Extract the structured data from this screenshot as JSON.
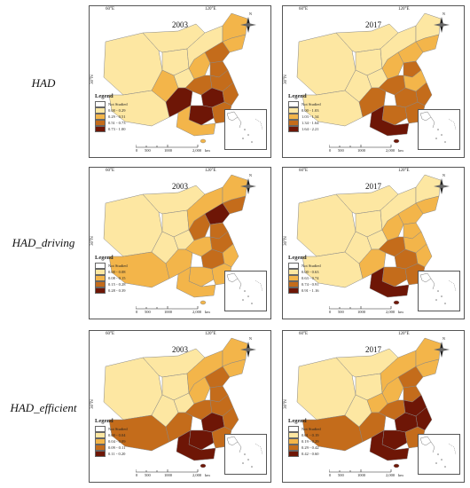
{
  "labels": {
    "lon_left": "60°E",
    "lon_right": "120°E",
    "lat": "30°N",
    "north": "N",
    "legend_title": "Legend",
    "not_studied": "Not Studied",
    "scale_0": "0",
    "scale_500": "500",
    "scale_1000": "1000",
    "scale_2000": "2,000",
    "scale_unit": "km"
  },
  "colors": {
    "c1": "#fde7a2",
    "c2": "#f3b54a",
    "c3": "#c46c1b",
    "c4": "#6e1606",
    "not_studied": "#ffffff"
  },
  "rows": [
    {
      "label": "HAD",
      "panels": [
        {
          "year": "2003",
          "classes": [
            "0.00 - 0.29",
            "0.29 - 0.51",
            "0.51 - 0.73",
            "0.73 - 1.00"
          ],
          "levels": [
            1,
            1,
            1,
            1,
            2,
            1,
            1,
            2,
            2,
            3,
            2,
            3,
            3,
            3,
            4,
            4,
            3,
            4,
            3,
            2
          ]
        },
        {
          "year": "2017",
          "classes": [
            "0.00 - 1.03",
            "1.03 - 1.34",
            "1.34 - 1.64",
            "1.64 - 2.21"
          ],
          "levels": [
            1,
            1,
            1,
            1,
            1,
            1,
            1,
            1,
            2,
            2,
            2,
            3,
            3,
            2,
            3,
            3,
            3,
            3,
            3,
            4
          ]
        }
      ]
    },
    {
      "label": "HAD_driving",
      "panels": [
        {
          "year": "2003",
          "classes": [
            "0.00 - 0.08",
            "0.08 - 0.15",
            "0.15 - 0.28",
            "0.28 - 0.39"
          ],
          "levels": [
            1,
            2,
            1,
            1,
            1,
            1,
            2,
            2,
            3,
            4,
            3,
            3,
            2,
            3,
            2,
            3,
            2,
            2,
            2,
            2
          ]
        },
        {
          "year": "2017",
          "classes": [
            "0.00 - 0.63",
            "0.63 - 0.74",
            "0.74 - 0.91",
            "0.91 - 1.16"
          ],
          "levels": [
            1,
            1,
            1,
            1,
            1,
            1,
            1,
            1,
            2,
            2,
            2,
            2,
            3,
            2,
            2,
            3,
            2,
            3,
            3,
            4
          ]
        }
      ]
    },
    {
      "label": "HAD_efficient",
      "panels": [
        {
          "year": "2003",
          "classes": [
            "0.00 - 0.04",
            "0.04 - 0.09",
            "0.09 - 0.11",
            "0.11 - 0.20"
          ],
          "levels": [
            1,
            3,
            1,
            1,
            1,
            1,
            2,
            2,
            2,
            3,
            2,
            3,
            3,
            3,
            3,
            4,
            3,
            4,
            3,
            4
          ]
        },
        {
          "year": "2017",
          "classes": [
            "0.01 - 0.19",
            "0.19 - 0.29",
            "0.29 - 0.42",
            "0.42 - 0.60"
          ],
          "levels": [
            1,
            3,
            1,
            1,
            1,
            2,
            2,
            2,
            2,
            3,
            2,
            3,
            3,
            4,
            3,
            4,
            4,
            4,
            3,
            4
          ]
        }
      ]
    }
  ]
}
